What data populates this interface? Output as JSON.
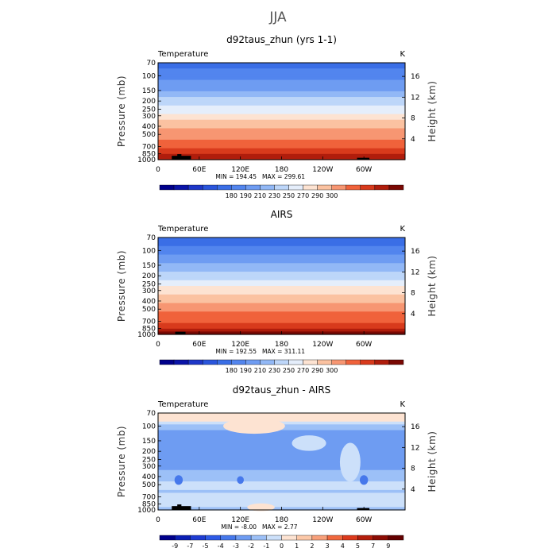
{
  "figure": {
    "title": "JJA"
  },
  "chart_data": [
    {
      "type": "heatmap",
      "panel_id": "model",
      "title": "d92taus_zhun (yrs 1-1)",
      "variable_label": "Temperature",
      "units": "K",
      "ylabel": "Pressure (mb)",
      "ylabel_right": "Height (km)",
      "x_ticks": [
        "0",
        "60E",
        "120E",
        "180",
        "120W",
        "60W"
      ],
      "x_tick_lon": [
        0,
        60,
        120,
        180,
        240,
        300
      ],
      "xlim": [
        0,
        360
      ],
      "y_ticks": [
        70,
        100,
        150,
        200,
        250,
        300,
        400,
        500,
        700,
        850,
        1000
      ],
      "ylim": [
        1000,
        70
      ],
      "y_scale": "log",
      "right_ticks": [
        "4",
        "8",
        "12",
        "16"
      ],
      "right_tick_km": [
        4,
        8,
        12,
        16
      ],
      "stats": {
        "min_label": "MIN = 194.45",
        "max_label": "MAX = 299.61",
        "min": 194.45,
        "max": 299.61
      },
      "contour_levels": [
        175,
        180,
        185,
        190,
        200,
        210,
        220,
        230,
        240,
        250,
        260,
        270,
        280,
        290,
        295,
        300
      ],
      "colorbar_tick_labels": [
        "180",
        "190",
        "210",
        "230",
        "250",
        "270",
        "290",
        "300"
      ],
      "colors": [
        "#00008B",
        "#0A14A8",
        "#1E37C8",
        "#2A55DC",
        "#3A6EE6",
        "#5285EE",
        "#6E9CF2",
        "#92B8F6",
        "#BDD6F9",
        "#E5EEFB",
        "#FDE3D2",
        "#FBC2A1",
        "#F79672",
        "#F0623B",
        "#D83A1C",
        "#B01D0C",
        "#7A0803"
      ],
      "band_values": [
        194.5,
        197,
        200,
        203,
        206,
        208,
        210,
        212,
        216,
        219,
        222,
        226,
        230,
        234,
        238,
        242,
        246,
        250,
        254,
        258,
        262,
        265,
        268,
        271,
        274,
        277,
        280,
        283,
        286,
        289,
        292,
        295,
        297.5,
        299.6
      ],
      "terrain": [
        {
          "lon": [
            20,
            48
          ],
          "p": 900
        },
        {
          "lon": [
            28,
            34
          ],
          "p": 860
        },
        {
          "lon": [
            290,
            308
          ],
          "p": 950
        }
      ]
    },
    {
      "type": "heatmap",
      "panel_id": "obs",
      "title": "AIRS",
      "variable_label": "Temperature",
      "units": "K",
      "ylabel": "Pressure (mb)",
      "ylabel_right": "Height (km)",
      "x_ticks": [
        "0",
        "60E",
        "120E",
        "180",
        "120W",
        "60W"
      ],
      "x_tick_lon": [
        0,
        60,
        120,
        180,
        240,
        300
      ],
      "xlim": [
        0,
        360
      ],
      "y_ticks": [
        70,
        100,
        150,
        200,
        250,
        300,
        400,
        500,
        700,
        850,
        1000
      ],
      "ylim": [
        1000,
        70
      ],
      "y_scale": "log",
      "right_ticks": [
        "4",
        "8",
        "12",
        "16"
      ],
      "right_tick_km": [
        4,
        8,
        12,
        16
      ],
      "stats": {
        "min_label": "MIN = 192.55",
        "max_label": "MAX = 311.11",
        "min": 192.55,
        "max": 311.11
      },
      "contour_levels": [
        175,
        180,
        185,
        190,
        200,
        210,
        220,
        230,
        240,
        250,
        260,
        270,
        280,
        290,
        295,
        300
      ],
      "colorbar_tick_labels": [
        "180",
        "190",
        "210",
        "230",
        "250",
        "270",
        "290",
        "300"
      ],
      "colors": [
        "#00008B",
        "#0A14A8",
        "#1E37C8",
        "#2A55DC",
        "#3A6EE6",
        "#5285EE",
        "#6E9CF2",
        "#92B8F6",
        "#BDD6F9",
        "#E5EEFB",
        "#FDE3D2",
        "#FBC2A1",
        "#F79672",
        "#F0623B",
        "#D83A1C",
        "#B01D0C",
        "#7A0803"
      ],
      "band_values": [
        193,
        195,
        198,
        201,
        204,
        207,
        210,
        213,
        217,
        220,
        224,
        227,
        231,
        235,
        239,
        243,
        247,
        251,
        255,
        259,
        263,
        266,
        269,
        272,
        275,
        278,
        281,
        284,
        287,
        290,
        293,
        296,
        299,
        302
      ],
      "terrain": [
        {
          "lon": [
            25,
            40
          ],
          "p": 930
        }
      ]
    },
    {
      "type": "heatmap",
      "panel_id": "diff",
      "title": "d92taus_zhun - AIRS",
      "variable_label": "Temperature",
      "units": "K",
      "ylabel": "Pressure (mb)",
      "ylabel_right": "Height (km)",
      "x_ticks": [
        "0",
        "60E",
        "120E",
        "180",
        "120W",
        "60W"
      ],
      "x_tick_lon": [
        0,
        60,
        120,
        180,
        240,
        300
      ],
      "xlim": [
        0,
        360
      ],
      "y_ticks": [
        70,
        100,
        150,
        200,
        250,
        300,
        400,
        500,
        700,
        850,
        1000
      ],
      "ylim": [
        1000,
        70
      ],
      "y_scale": "log",
      "right_ticks": [
        "4",
        "8",
        "12",
        "16"
      ],
      "right_tick_km": [
        4,
        8,
        12,
        16
      ],
      "stats": {
        "min_label": "MIN = -8.00",
        "max_label": "MAX =   2.77",
        "min": -8.0,
        "max": 2.77
      },
      "contour_levels": [
        -9,
        -7,
        -5,
        -4,
        -3,
        -2,
        -1,
        0,
        1,
        2,
        3,
        4,
        5,
        7,
        9
      ],
      "colorbar_tick_labels": [
        "-9",
        "-7",
        "-5",
        "-4",
        "-3",
        "-2",
        "-1",
        "0",
        "1",
        "2",
        "3",
        "4",
        "5",
        "7",
        "9"
      ],
      "colors": [
        "#00008B",
        "#0A1EB4",
        "#1E3CD2",
        "#2D5AE6",
        "#4678EB",
        "#6E9CF2",
        "#9CC0F7",
        "#CCE0FA",
        "#FDE3D2",
        "#FCC8A8",
        "#F8A07A",
        "#F0683E",
        "#DC3A1C",
        "#B41E0C",
        "#8C0C04",
        "#640000"
      ],
      "band_values": [
        0.3,
        0.2,
        0.5,
        0.4,
        -0.8,
        -1.5,
        -2.2,
        -2.8,
        -2.5,
        -2.6,
        -2.4,
        -2.6,
        -2.3,
        -2.7,
        -2.5,
        -2.2,
        -2.0,
        -2.3,
        -2.5,
        -2.0,
        -1.6,
        -1.8,
        -1.5,
        -1.0,
        -0.9,
        -0.7,
        -1.0,
        -1.2,
        -0.8,
        -0.6,
        -0.4,
        -0.5,
        -1.3,
        -2.0
      ],
      "blobs": [
        {
          "lon": 140,
          "p": 100,
          "rlon": 45,
          "rp": 0.08,
          "value": 0.9
        },
        {
          "lon": 30,
          "p": 240,
          "rlon": 22,
          "rp": 0.1,
          "value": -2.6
        },
        {
          "lon": 220,
          "p": 160,
          "rlon": 25,
          "rp": 0.08,
          "value": -0.8
        },
        {
          "lon": 280,
          "p": 270,
          "rlon": 15,
          "rp": 0.2,
          "value": -0.9
        },
        {
          "lon": 30,
          "p": 440,
          "rlon": 6,
          "rp": 0.05,
          "value": -3.3
        },
        {
          "lon": 120,
          "p": 440,
          "rlon": 5,
          "rp": 0.04,
          "value": -3.2
        },
        {
          "lon": 300,
          "p": 440,
          "rlon": 6,
          "rp": 0.05,
          "value": -3.2
        },
        {
          "lon": 130,
          "p": 720,
          "rlon": 40,
          "rp": 0.05,
          "value": -0.6
        },
        {
          "lon": 150,
          "p": 930,
          "rlon": 20,
          "rp": 0.04,
          "value": 0.3
        }
      ],
      "terrain": [
        {
          "lon": [
            20,
            48
          ],
          "p": 900
        },
        {
          "lon": [
            28,
            34
          ],
          "p": 860
        },
        {
          "lon": [
            290,
            308
          ],
          "p": 950
        }
      ]
    }
  ]
}
